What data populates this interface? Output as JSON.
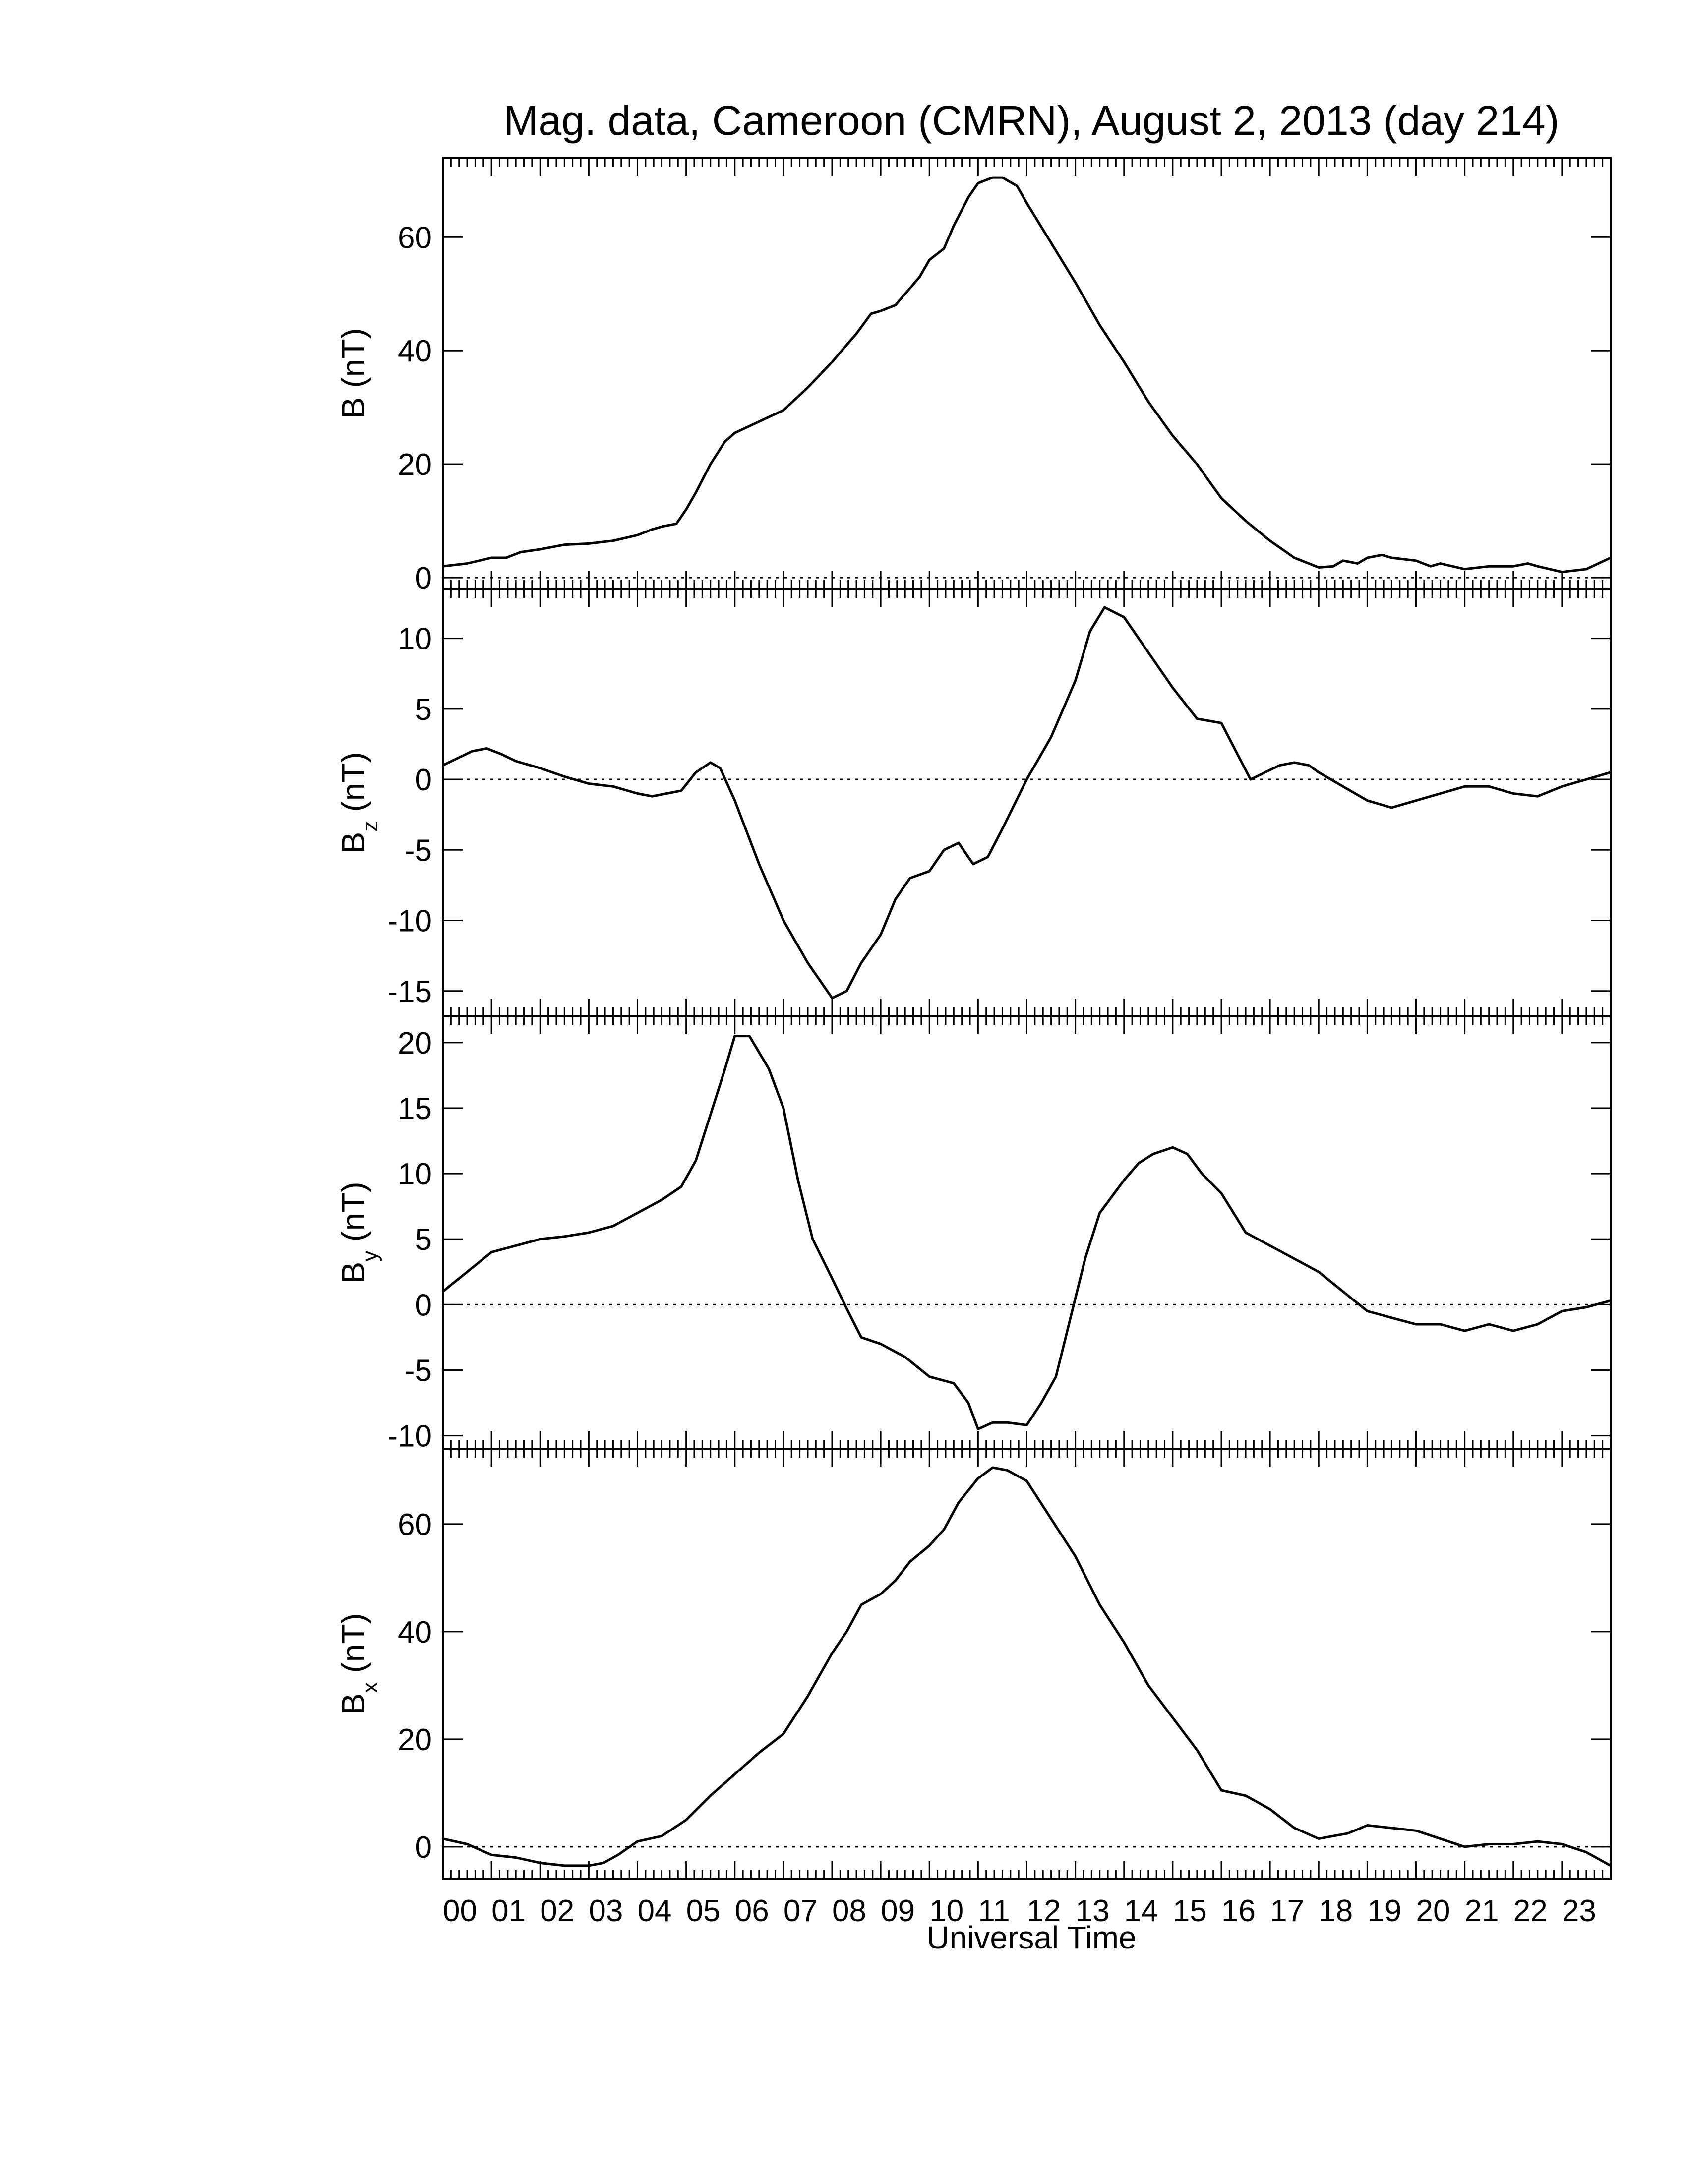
{
  "chart_data": {
    "title": "Mag. data, Cameroon (CMRN), August 2, 2013 (day 214)",
    "xlabel": "Universal Time",
    "x_unit": "hours UT",
    "x_range": [
      0,
      24
    ],
    "x_tick_labels": [
      "00",
      "01",
      "02",
      "03",
      "04",
      "05",
      "06",
      "07",
      "08",
      "09",
      "10",
      "11",
      "12",
      "13",
      "14",
      "15",
      "16",
      "17",
      "18",
      "19",
      "20",
      "21",
      "22",
      "23"
    ],
    "panels": [
      {
        "type": "line",
        "ylabel": "B",
        "ylabel_sub": "",
        "unit": "(nT)",
        "ylim": [
          -2,
          74
        ],
        "yticks": [
          0,
          20,
          40,
          60
        ],
        "zero_line": true,
        "series": [
          {
            "x": [
              0,
              0.5,
              1.0,
              1.3,
              1.6,
              2.0,
              2.5,
              3.0,
              3.5,
              4.0,
              4.3,
              4.5,
              4.8,
              5.0,
              5.2,
              5.5,
              5.8,
              6.0,
              6.5,
              7.0,
              7.5,
              8.0,
              8.3,
              8.5,
              8.8,
              9.0,
              9.3,
              9.5,
              9.8,
              10.0,
              10.3,
              10.5,
              10.8,
              11.0,
              11.3,
              11.5,
              11.8,
              12.0,
              12.5,
              13.0,
              13.5,
              14.0,
              14.5,
              15.0,
              15.5,
              16.0,
              16.5,
              17.0,
              17.5,
              18.0,
              18.3,
              18.5,
              18.8,
              19.0,
              19.3,
              19.5,
              20.0,
              20.3,
              20.5,
              21.0,
              21.5,
              22.0,
              22.3,
              22.5,
              23.0,
              23.5,
              24.0
            ],
            "y": [
              2.0,
              2.5,
              3.5,
              3.5,
              4.5,
              5.0,
              5.8,
              6.0,
              6.5,
              7.5,
              8.5,
              9.0,
              9.5,
              12.0,
              15.0,
              20.0,
              24.0,
              25.5,
              27.5,
              29.5,
              33.5,
              38.0,
              41.0,
              43.0,
              46.5,
              47.0,
              48.0,
              50.0,
              53.0,
              56.0,
              58.0,
              62.0,
              67.0,
              69.5,
              70.5,
              70.5,
              69.0,
              66.0,
              59.0,
              52.0,
              44.5,
              38.0,
              31.0,
              25.0,
              20.0,
              14.0,
              10.0,
              6.5,
              3.5,
              1.8,
              2.0,
              3.0,
              2.5,
              3.5,
              4.0,
              3.5,
              3.0,
              2.0,
              2.5,
              1.5,
              2.0,
              2.0,
              2.5,
              2.0,
              1.0,
              1.5,
              3.5
            ]
          }
        ]
      },
      {
        "type": "line",
        "ylabel": "B",
        "ylabel_sub": "z",
        "unit": "(nT)",
        "ylim": [
          -16.8,
          13.5
        ],
        "yticks": [
          -15,
          -10,
          -5,
          0,
          5,
          10
        ],
        "zero_line": true,
        "series": [
          {
            "x": [
              0,
              0.3,
              0.6,
              0.9,
              1.2,
              1.5,
              2.0,
              2.5,
              3.0,
              3.5,
              4.0,
              4.3,
              4.6,
              4.9,
              5.2,
              5.5,
              5.7,
              6.0,
              6.5,
              7.0,
              7.5,
              8.0,
              8.3,
              8.6,
              9.0,
              9.3,
              9.6,
              10.0,
              10.3,
              10.6,
              10.9,
              11.2,
              11.5,
              12.0,
              12.5,
              13.0,
              13.3,
              13.6,
              14.0,
              14.5,
              15.0,
              15.5,
              16.0,
              16.3,
              16.6,
              16.9,
              17.2,
              17.5,
              17.8,
              18.0,
              18.5,
              19.0,
              19.5,
              20.0,
              20.5,
              21.0,
              21.5,
              22.0,
              22.5,
              23.0,
              23.5,
              24.0
            ],
            "y": [
              1.0,
              1.5,
              2.0,
              2.2,
              1.8,
              1.3,
              0.8,
              0.2,
              -0.3,
              -0.5,
              -1.0,
              -1.2,
              -1.0,
              -0.8,
              0.5,
              1.2,
              0.8,
              -1.5,
              -6.0,
              -10.0,
              -13.0,
              -15.5,
              -15.0,
              -13.0,
              -11.0,
              -8.5,
              -7.0,
              -6.5,
              -5.0,
              -4.5,
              -6.0,
              -5.5,
              -3.5,
              0.0,
              3.0,
              7.0,
              10.5,
              12.2,
              11.5,
              9.0,
              6.5,
              4.3,
              4.0,
              2.0,
              0.0,
              0.5,
              1.0,
              1.2,
              1.0,
              0.5,
              -0.5,
              -1.5,
              -2.0,
              -1.5,
              -1.0,
              -0.5,
              -0.5,
              -1.0,
              -1.2,
              -0.5,
              0.0,
              0.5
            ]
          }
        ]
      },
      {
        "type": "line",
        "ylabel": "B",
        "ylabel_sub": "y",
        "unit": "(nT)",
        "ylim": [
          -11,
          22
        ],
        "yticks": [
          -10,
          -5,
          0,
          5,
          10,
          15,
          20
        ],
        "zero_line": true,
        "series": [
          {
            "x": [
              0,
              0.5,
              1.0,
              1.5,
              2.0,
              2.5,
              3.0,
              3.5,
              4.0,
              4.5,
              4.9,
              5.2,
              5.5,
              5.8,
              6.0,
              6.3,
              6.7,
              7.0,
              7.3,
              7.6,
              8.0,
              8.3,
              8.6,
              9.0,
              9.5,
              10.0,
              10.5,
              10.8,
              11.0,
              11.3,
              11.6,
              12.0,
              12.3,
              12.6,
              12.9,
              13.2,
              13.5,
              13.8,
              14.0,
              14.3,
              14.6,
              15.0,
              15.3,
              15.6,
              16.0,
              16.5,
              17.0,
              17.5,
              18.0,
              18.5,
              19.0,
              19.5,
              20.0,
              20.5,
              21.0,
              21.5,
              22.0,
              22.5,
              23.0,
              23.5,
              24.0
            ],
            "y": [
              1.0,
              2.5,
              4.0,
              4.5,
              5.0,
              5.2,
              5.5,
              6.0,
              7.0,
              8.0,
              9.0,
              11.0,
              14.5,
              18.0,
              20.5,
              20.5,
              18.0,
              15.0,
              9.5,
              5.0,
              2.0,
              -0.3,
              -2.5,
              -3.0,
              -4.0,
              -5.5,
              -6.0,
              -7.5,
              -9.5,
              -9.0,
              -9.0,
              -9.2,
              -7.5,
              -5.5,
              -1.0,
              3.5,
              7.0,
              8.5,
              9.5,
              10.8,
              11.5,
              12.0,
              11.5,
              10.0,
              8.5,
              5.5,
              4.5,
              3.5,
              2.5,
              1.0,
              -0.5,
              -1.0,
              -1.5,
              -1.5,
              -2.0,
              -1.5,
              -2.0,
              -1.5,
              -0.5,
              -0.2,
              0.3
            ]
          }
        ]
      },
      {
        "type": "line",
        "ylabel": "B",
        "ylabel_sub": "x",
        "unit": "(nT)",
        "ylim": [
          -6,
          74
        ],
        "yticks": [
          0,
          20,
          40,
          60
        ],
        "zero_line": true,
        "series": [
          {
            "x": [
              0,
              0.5,
              1.0,
              1.5,
              2.0,
              2.5,
              3.0,
              3.3,
              3.6,
              4.0,
              4.5,
              5.0,
              5.5,
              6.0,
              6.5,
              7.0,
              7.5,
              8.0,
              8.3,
              8.6,
              9.0,
              9.3,
              9.6,
              10.0,
              10.3,
              10.6,
              11.0,
              11.3,
              11.6,
              12.0,
              12.5,
              13.0,
              13.5,
              14.0,
              14.5,
              15.0,
              15.5,
              16.0,
              16.5,
              17.0,
              17.5,
              18.0,
              18.3,
              18.6,
              19.0,
              19.5,
              20.0,
              20.5,
              21.0,
              21.5,
              22.0,
              22.5,
              23.0,
              23.5,
              24.0
            ],
            "y": [
              1.5,
              0.5,
              -1.5,
              -2.0,
              -3.0,
              -3.5,
              -3.5,
              -3.0,
              -1.5,
              1.0,
              2.0,
              5.0,
              9.5,
              13.5,
              17.5,
              21.0,
              28.0,
              36.0,
              40.0,
              45.0,
              47.0,
              49.5,
              53.0,
              56.0,
              59.0,
              64.0,
              68.5,
              70.5,
              70.0,
              68.0,
              61.0,
              54.0,
              45.0,
              38.0,
              30.0,
              24.0,
              18.0,
              10.5,
              9.5,
              7.0,
              3.5,
              1.5,
              2.0,
              2.5,
              4.0,
              3.5,
              3.0,
              1.5,
              0.0,
              0.5,
              0.5,
              1.0,
              0.5,
              -1.0,
              -3.5
            ]
          }
        ]
      }
    ]
  }
}
